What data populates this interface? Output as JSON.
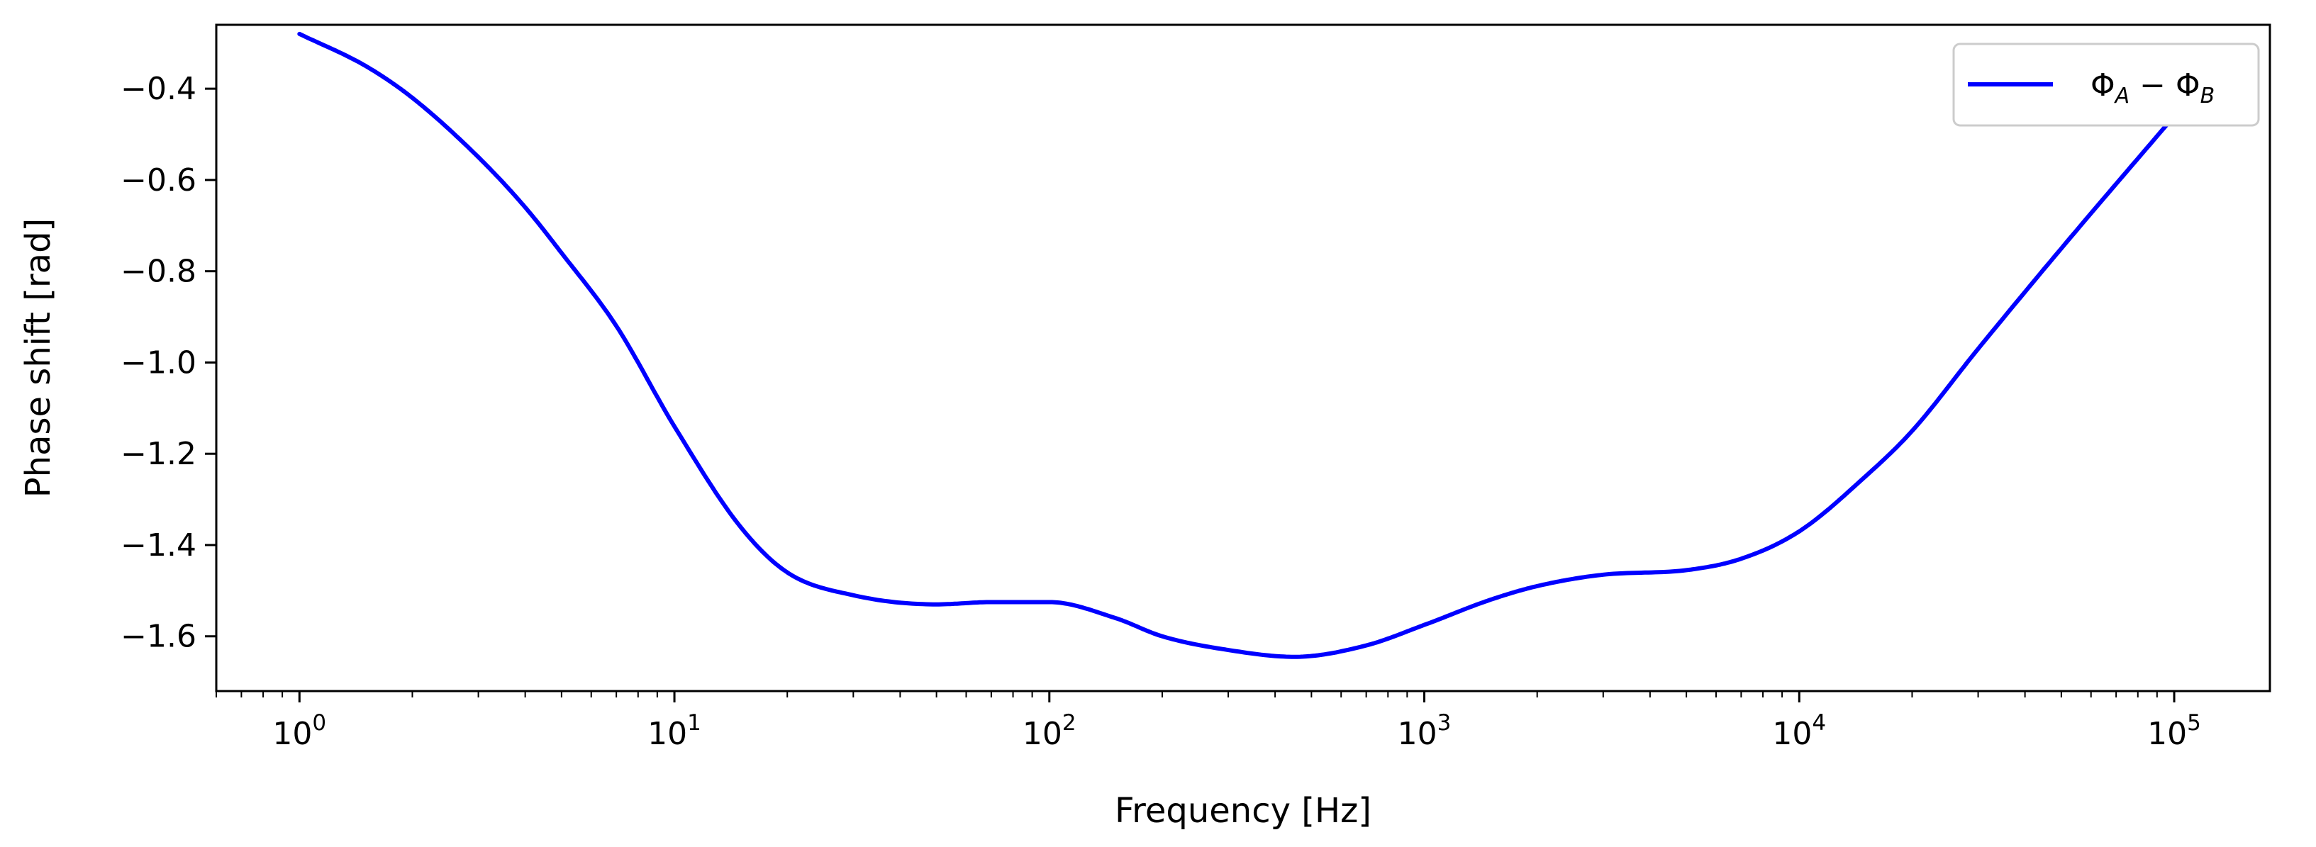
{
  "chart_data": {
    "type": "line",
    "title": "",
    "xlabel": "Frequency [Hz]",
    "ylabel": "Phase shift [rad]",
    "xscale": "log",
    "xlim": [
      0.6,
      180000
    ],
    "ylim": [
      -1.72,
      -0.26
    ],
    "grid": false,
    "legend_position": "top-right",
    "x_ticks": [
      {
        "value": 1,
        "base": "10",
        "exp": "0"
      },
      {
        "value": 10,
        "base": "10",
        "exp": "1"
      },
      {
        "value": 100,
        "base": "10",
        "exp": "2"
      },
      {
        "value": 1000,
        "base": "10",
        "exp": "3"
      },
      {
        "value": 10000,
        "base": "10",
        "exp": "4"
      },
      {
        "value": 100000,
        "base": "10",
        "exp": "5"
      }
    ],
    "y_ticks": [
      {
        "value": -0.4,
        "label": "−0.4"
      },
      {
        "value": -0.6,
        "label": "−0.6"
      },
      {
        "value": -0.8,
        "label": "−0.8"
      },
      {
        "value": -1.0,
        "label": "−1.0"
      },
      {
        "value": -1.2,
        "label": "−1.2"
      },
      {
        "value": -1.4,
        "label": "−1.4"
      },
      {
        "value": -1.6,
        "label": "−1.6"
      }
    ],
    "series": [
      {
        "name": "Φ_A − Φ_B",
        "legend_main": "Φ",
        "legend_sub_a": "A",
        "legend_minus": " − ",
        "legend_sub_b": "B",
        "color": "#0000ff",
        "x": [
          1,
          1.5,
          2,
          3,
          4,
          5,
          7,
          10,
          15,
          20,
          30,
          50,
          70,
          100,
          150,
          200,
          300,
          450,
          700,
          1000,
          1500,
          2000,
          3000,
          5000,
          7000,
          10000,
          15000,
          20000,
          30000,
          50000,
          100000
        ],
        "y": [
          -0.28,
          -0.35,
          -0.42,
          -0.55,
          -0.66,
          -0.76,
          -0.92,
          -1.14,
          -1.36,
          -1.46,
          -1.51,
          -1.53,
          -1.525,
          -1.525,
          -1.56,
          -1.6,
          -1.63,
          -1.645,
          -1.62,
          -1.575,
          -1.52,
          -1.49,
          -1.465,
          -1.455,
          -1.43,
          -1.37,
          -1.25,
          -1.15,
          -0.97,
          -0.75,
          -0.46
        ]
      }
    ]
  }
}
